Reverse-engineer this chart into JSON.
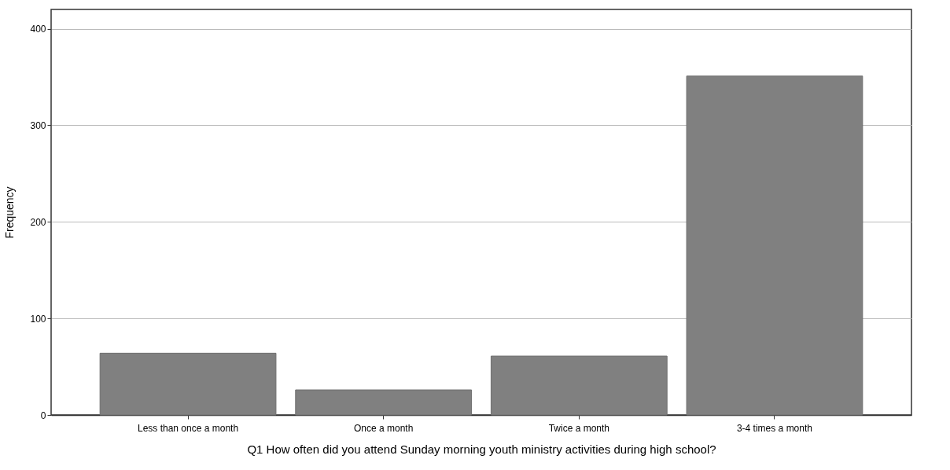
{
  "chart_data": {
    "type": "bar",
    "xlabel": "Q1 How often did you attend Sunday morning youth ministry activities during high school?",
    "ylabel": "Frequency",
    "categories": [
      "Less than once a month",
      "Once a month",
      "Twice a month",
      "3-4 times a month"
    ],
    "values": [
      64,
      26,
      61,
      351
    ],
    "color": "#808080",
    "ylim": [
      0,
      420
    ],
    "yticks": [
      0,
      100,
      200,
      300,
      400
    ],
    "grid": "y"
  }
}
